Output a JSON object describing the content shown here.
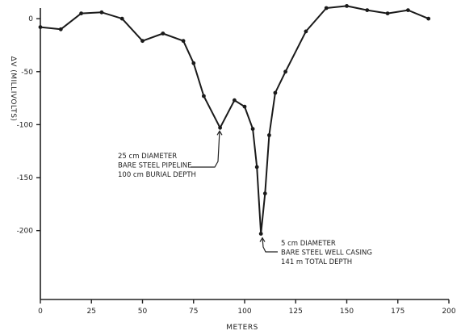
{
  "chart_data": {
    "type": "line",
    "title": "",
    "xlabel": "METERS",
    "ylabel": "ΔV (MILLIVOLTS)",
    "xlim": [
      0,
      200
    ],
    "ylim": [
      -265,
      10
    ],
    "x_ticks": [
      0,
      25,
      50,
      75,
      100,
      125,
      150,
      175,
      200
    ],
    "y_ticks": [
      0,
      -50,
      -100,
      -150,
      -200
    ],
    "grid": false,
    "legend": "none",
    "series": [
      {
        "x": [
          0,
          10,
          20,
          30,
          40,
          50,
          60,
          70,
          75,
          80,
          88,
          95,
          100,
          104,
          106,
          108,
          110,
          112,
          115,
          120,
          130,
          140,
          150,
          160,
          170,
          180,
          190
        ],
        "y": [
          -8,
          -10,
          5,
          6,
          0,
          -21,
          -14,
          -21,
          -42,
          -73,
          -103,
          -77,
          -83,
          -104,
          -140,
          -203,
          -165,
          -110,
          -70,
          -50,
          -12,
          10,
          12,
          8,
          5,
          8,
          0
        ]
      }
    ],
    "annotations": [
      {
        "text_lines": [
          "25 cm DIAMETER",
          "BARE STEEL PIPELINE",
          "100 cm BURIAL DEPTH"
        ],
        "point": [
          88,
          -103
        ]
      },
      {
        "text_lines": [
          "5 cm DIAMETER",
          "BARE STEEL WELL CASING",
          "141 m TOTAL DEPTH"
        ],
        "point": [
          108,
          -203
        ]
      }
    ]
  },
  "colors": {
    "ink": "#1a1a1a",
    "background": "#ffffff"
  }
}
